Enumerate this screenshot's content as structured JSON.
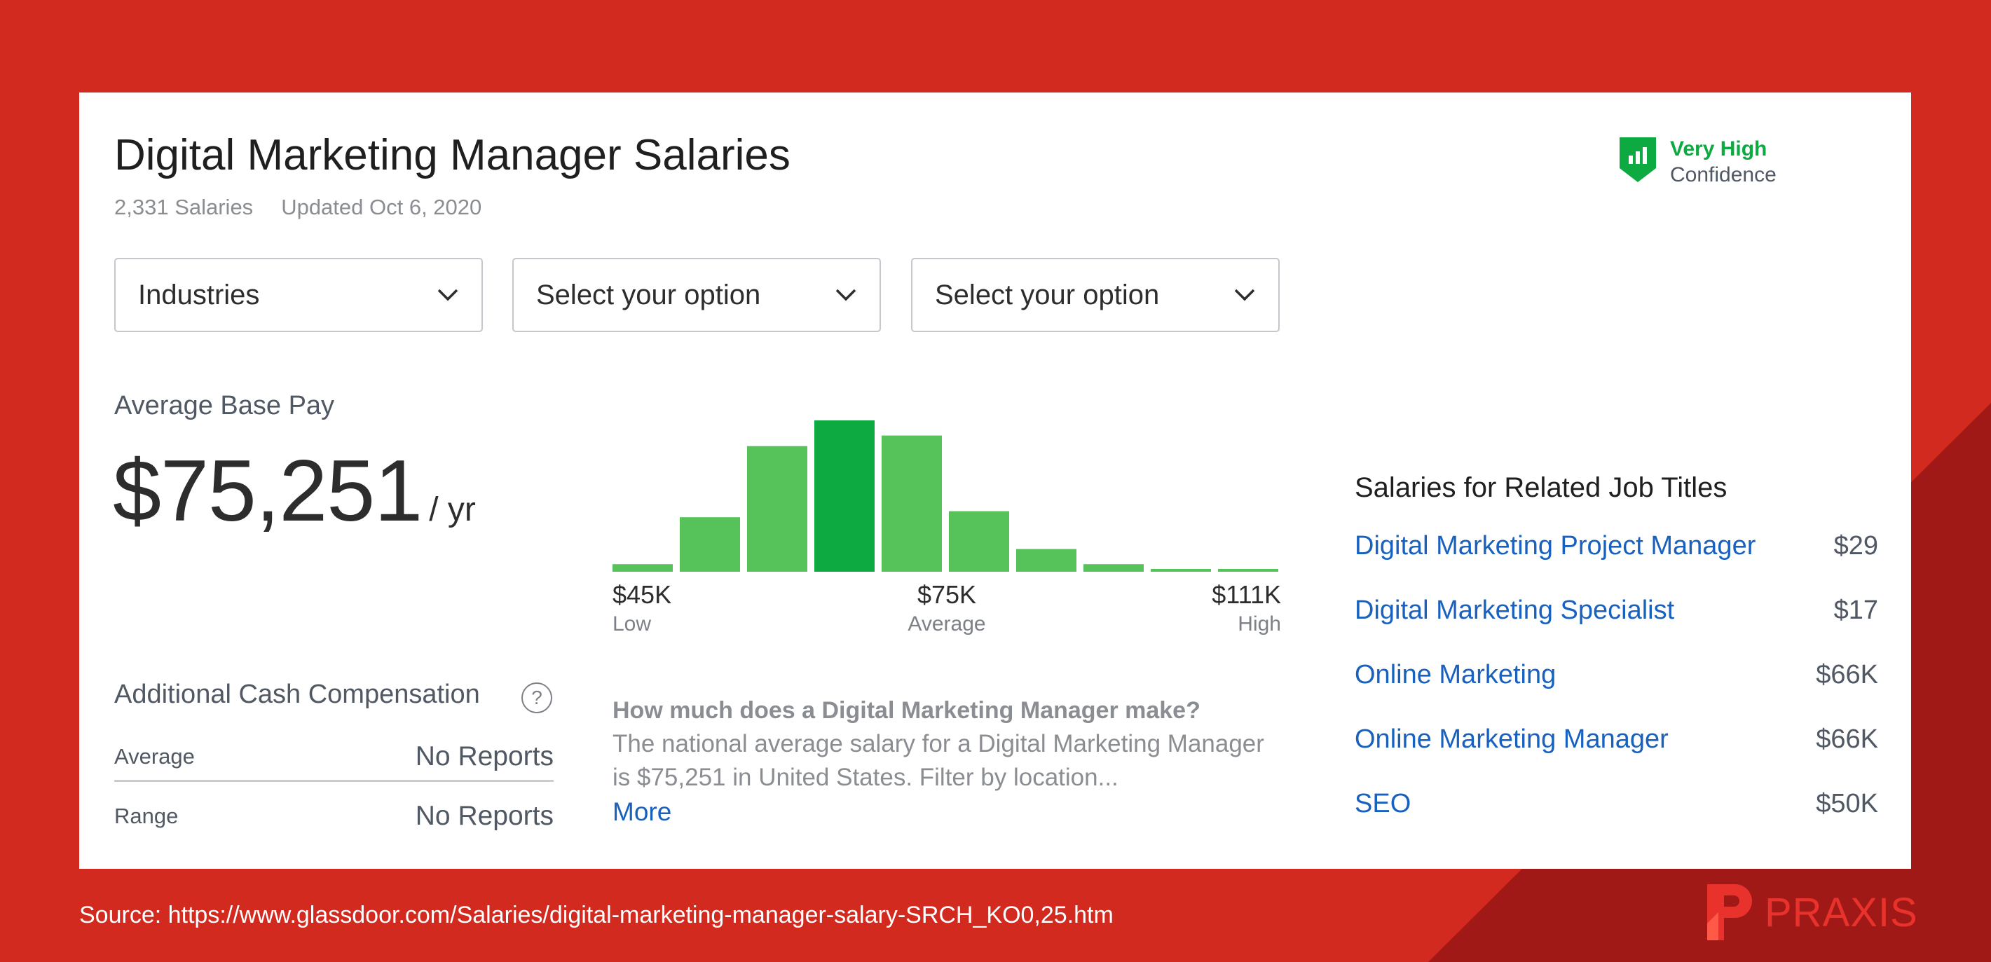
{
  "header": {
    "title": "Digital Marketing Manager Salaries",
    "salary_count": "2,331 Salaries",
    "updated": "Updated Oct 6, 2020"
  },
  "confidence": {
    "level": "Very High",
    "label": "Confidence",
    "icon": "bar-chart-shield-icon",
    "color": "#0caa41"
  },
  "filters": [
    {
      "label": "Industries",
      "icon": "chevron-down-icon"
    },
    {
      "label": "Select your option",
      "icon": "chevron-down-icon"
    },
    {
      "label": "Select your option",
      "icon": "chevron-down-icon"
    }
  ],
  "pay": {
    "label": "Average Base Pay",
    "amount": "$75,251",
    "unit": "/ yr"
  },
  "chart_data": {
    "type": "bar",
    "title": "",
    "values": [
      5,
      36,
      83,
      100,
      90,
      40,
      15,
      5,
      1,
      1
    ],
    "highlight_index": 3,
    "colors": {
      "bar": "#55c35a",
      "highlight": "#0caa41"
    },
    "ticks": [
      {
        "value": "$45K",
        "label": "Low"
      },
      {
        "value": "$75K",
        "label": "Average"
      },
      {
        "value": "$111K",
        "label": "High"
      }
    ]
  },
  "cash": {
    "title": "Additional Cash Compensation",
    "rows": [
      {
        "key": "Average",
        "value": "No Reports"
      },
      {
        "key": "Range",
        "value": "No Reports"
      }
    ]
  },
  "faq": {
    "question": "How much does a Digital Marketing Manager make?",
    "answer": "The national average salary for a Digital Marketing Manager is $75,251 in United States. Filter by location...",
    "more": "More"
  },
  "related": {
    "title": "Salaries for Related Job Titles",
    "items": [
      {
        "title": "Digital Marketing Project Manager",
        "pay": "$29"
      },
      {
        "title": "Digital Marketing Specialist",
        "pay": "$17"
      },
      {
        "title": "Online Marketing",
        "pay": "$66K"
      },
      {
        "title": "Online Marketing Manager",
        "pay": "$66K"
      },
      {
        "title": "SEO",
        "pay": "$50K"
      }
    ]
  },
  "footer": {
    "source": "Source: https://www.glassdoor.com/Salaries/digital-marketing-manager-salary-SRCH_KO0,25.htm",
    "brand": "PRAXIS"
  },
  "colors": {
    "background": "#d22a1f",
    "background_dark": "#a11917",
    "link": "#1861bf",
    "brand": "#e8322b"
  }
}
